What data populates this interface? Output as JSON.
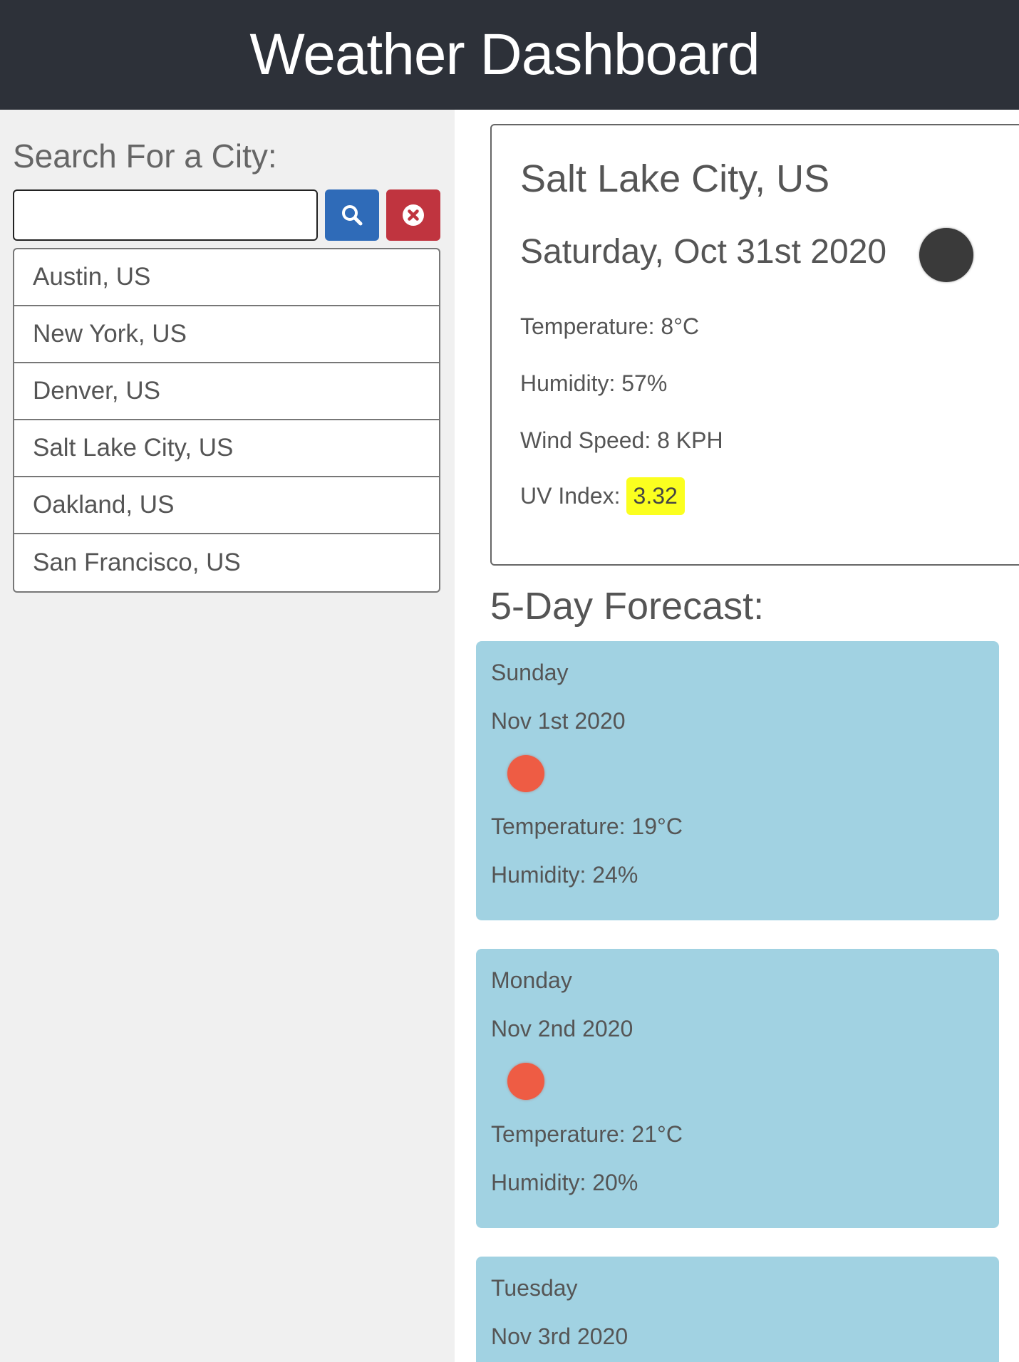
{
  "header": {
    "title": "Weather Dashboard"
  },
  "search": {
    "title": "Search For a City:",
    "value": "",
    "placeholder": ""
  },
  "icons": {
    "search_button": "search-icon",
    "clear_button": "times-circle-icon",
    "current_weather": "weather-icon-dark-circle",
    "forecast_weather": "weather-icon-red-circle"
  },
  "colors": {
    "header_bg": "#2d3139",
    "search_button": "#2f6bb8",
    "clear_button": "#c0343f",
    "uv_badge": "#fbff1f",
    "forecast_card": "#a1d2e2"
  },
  "cities": [
    {
      "label": "Austin, US"
    },
    {
      "label": "New York, US"
    },
    {
      "label": "Denver, US"
    },
    {
      "label": "Salt Lake City, US"
    },
    {
      "label": "Oakland, US"
    },
    {
      "label": "San Francisco, US"
    }
  ],
  "current": {
    "city": "Salt Lake City, US",
    "date": "Saturday, Oct 31st 2020",
    "temperature": "Temperature: 8°C",
    "humidity": "Humidity: 57%",
    "wind": "Wind Speed: 8 KPH",
    "uv_label": "UV Index:",
    "uv_value": "3.32"
  },
  "forecast": {
    "title": "5-Day Forecast:",
    "days": [
      {
        "day": "Sunday",
        "date": "Nov 1st 2020",
        "temperature": "Temperature: 19°C",
        "humidity": "Humidity: 24%"
      },
      {
        "day": "Monday",
        "date": "Nov 2nd 2020",
        "temperature": "Temperature: 21°C",
        "humidity": "Humidity: 20%"
      },
      {
        "day": "Tuesday",
        "date": "Nov 3rd 2020"
      }
    ]
  }
}
